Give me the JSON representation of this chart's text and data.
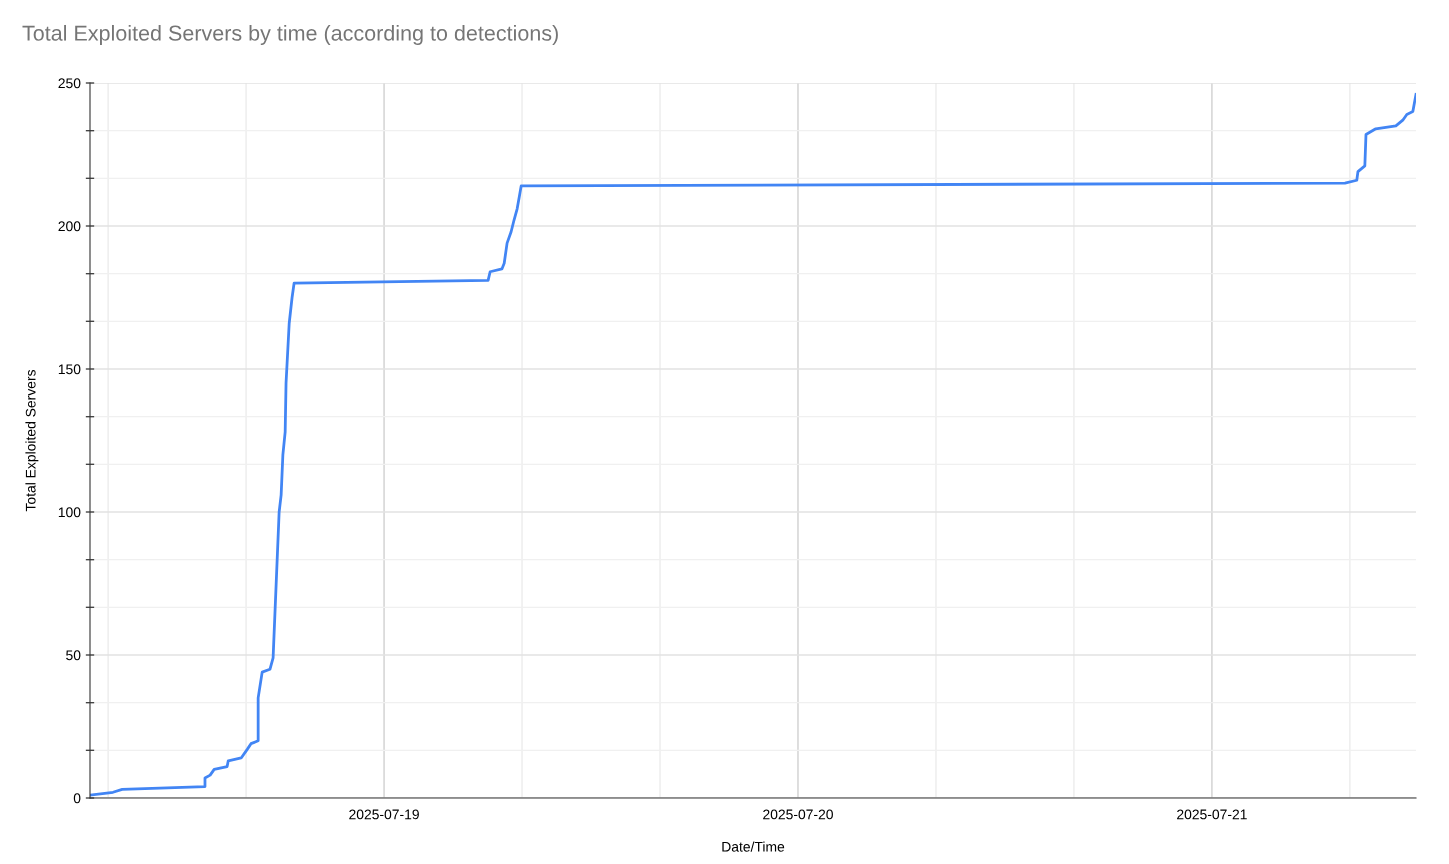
{
  "chart_data": {
    "type": "line",
    "title": "Total Exploited Servers by time (according to detections)",
    "xlabel": "Date/Time",
    "ylabel": "Total Exploited Servers",
    "x": [
      "2025-07-18T06:57",
      "2025-07-18T08:17",
      "2025-07-18T08:49",
      "2025-07-18T13:37",
      "2025-07-18T13:37",
      "2025-07-18T13:55",
      "2025-07-18T14:09",
      "2025-07-18T14:54",
      "2025-07-18T14:58",
      "2025-07-18T15:43",
      "2025-07-18T16:04",
      "2025-07-18T16:17",
      "2025-07-18T16:42",
      "2025-07-18T16:42",
      "2025-07-18T16:56",
      "2025-07-18T17:23",
      "2025-07-18T17:34",
      "2025-07-18T17:55",
      "2025-07-18T18:02",
      "2025-07-18T18:08",
      "2025-07-18T18:16",
      "2025-07-18T18:19",
      "2025-07-18T18:30",
      "2025-07-18T18:40",
      "2025-07-18T18:47",
      "2025-07-19T06:02",
      "2025-07-19T06:09",
      "2025-07-19T06:50",
      "2025-07-19T06:58",
      "2025-07-19T07:08",
      "2025-07-19T07:22",
      "2025-07-19T07:32",
      "2025-07-19T07:43",
      "2025-07-19T07:50",
      "2025-07-19T07:57",
      "2025-07-19T08:00",
      "2025-07-21T07:43",
      "2025-07-21T08:24",
      "2025-07-21T08:28",
      "2025-07-21T08:52",
      "2025-07-21T08:56",
      "2025-07-21T09:30",
      "2025-07-21T10:40",
      "2025-07-21T11:04",
      "2025-07-21T11:18",
      "2025-07-21T11:39",
      "2025-07-21T11:50"
    ],
    "series": [
      {
        "color": "#4285f4",
        "values": [
          1,
          2,
          3,
          4,
          7,
          8,
          10,
          11,
          13,
          14,
          17,
          19,
          20,
          35,
          44,
          45,
          49,
          100,
          106,
          120,
          128,
          145,
          166,
          175,
          180,
          181,
          184,
          185,
          187,
          194,
          198,
          202,
          206,
          210,
          214,
          214,
          215,
          216,
          219,
          221,
          232,
          234,
          235,
          237,
          239,
          240,
          246
        ]
      }
    ],
    "xlim": [
      "2025-07-18T06:57",
      "2025-07-21T11:50"
    ],
    "xticks": [
      {
        "value": "2025-07-18T08:00",
        "label": null
      },
      {
        "value": "2025-07-18T16:00",
        "label": null
      },
      "2025-07-19",
      {
        "value": "2025-07-19T08:00",
        "label": null
      },
      {
        "value": "2025-07-19T16:00",
        "label": null
      },
      "2025-07-20",
      {
        "value": "2025-07-20T08:00",
        "label": null
      },
      {
        "value": "2025-07-20T16:00",
        "label": null
      },
      "2025-07-21",
      {
        "value": "2025-07-21T08:00",
        "label": null
      }
    ],
    "ylim": [
      0,
      250
    ],
    "yticks": [
      0,
      {
        "value": 16.67,
        "label": null
      },
      {
        "value": 33.33,
        "label": null
      },
      50,
      {
        "value": 66.67,
        "label": null
      },
      {
        "value": 83.33,
        "label": null
      },
      100,
      {
        "value": 116.67,
        "label": null
      },
      {
        "value": 133.33,
        "label": null
      },
      150,
      {
        "value": 166.67,
        "label": null
      },
      {
        "value": 183.33,
        "label": null
      },
      200,
      {
        "value": 216.67,
        "label": null
      },
      {
        "value": 233.33,
        "label": null
      },
      250
    ],
    "grid": true,
    "marker": "none",
    "line_style": "solid"
  }
}
